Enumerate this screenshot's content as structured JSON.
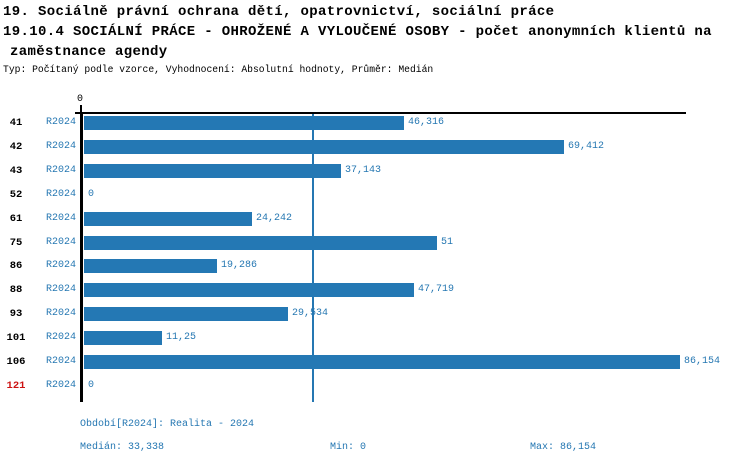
{
  "header": {
    "title": "19. Sociálně právní ochrana dětí, opatrovnictví, sociální práce",
    "subtitle_line1": "19.10.4 SOCIÁLNÍ PRÁCE - OHROŽENÉ A VYLOUČENÉ OSOBY - počet anonymních klientů na",
    "subtitle_line2": "zaměstnance agendy",
    "meta": "Typ: Počítaný podle vzorce, Vyhodnocení: Absolutní hodnoty, Průměr: Medián"
  },
  "colors": {
    "bar": "#2478b4",
    "blue_text": "#2577b2",
    "axis": "#000000",
    "alert_red": "#cc1111"
  },
  "chart_data": {
    "type": "bar",
    "orientation": "horizontal",
    "title": "19.10.4 SOCIÁLNÍ PRÁCE - OHROŽENÉ A VYLOUČENÉ OSOBY - počet anonymních klientů na zaměstnance agendy",
    "xlabel": "",
    "ylabel": "",
    "xlim": [
      0,
      86.154
    ],
    "axis_tick_label": "0",
    "grid": false,
    "legend_position": "none",
    "series_label": "R2024",
    "categories": [
      "41",
      "42",
      "43",
      "52",
      "61",
      "75",
      "86",
      "88",
      "93",
      "101",
      "106",
      "121"
    ],
    "values": [
      46.316,
      69.412,
      37.143,
      0,
      24.242,
      51,
      19.286,
      47.719,
      29.534,
      11.25,
      86.154,
      0
    ],
    "value_labels": [
      "46,316",
      "69,412",
      "37,143",
      "0",
      "24,242",
      "51",
      "19,286",
      "47,719",
      "29,534",
      "11,25",
      "86,154",
      "0"
    ],
    "highlighted_categories": [
      "121"
    ],
    "median_line_value": 33.338
  },
  "footer": {
    "period": "Období[R2024]: Realita - 2024",
    "median": "Medián: 33,338",
    "min": "Min: 0",
    "max": "Max: 86,154"
  }
}
